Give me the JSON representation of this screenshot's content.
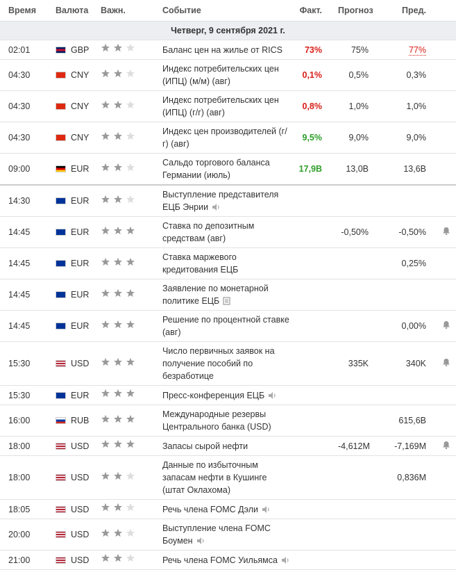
{
  "header": {
    "time": "Время",
    "currency": "Валюта",
    "importance": "Важн.",
    "event": "Событие",
    "actual": "Факт.",
    "forecast": "Прогноз",
    "previous": "Пред."
  },
  "date": "Четверг, 9 сентября 2021 г.",
  "rows": [
    {
      "time": "02:01",
      "currency": "GBP",
      "flag": [
        "#012169",
        "#c8102e",
        "#012169"
      ],
      "importance": 2,
      "event": "Баланс цен на жилье от RICS",
      "actual": "73%",
      "actual_color": "#d91e18",
      "forecast": "75%",
      "previous": "77%",
      "previous_color": "#d91e18"
    },
    {
      "time": "04:30",
      "currency": "CNY",
      "flag": [
        "#de2910"
      ],
      "importance": 2,
      "event": "Индекс потребительских цен (ИПЦ) (м/м) (авг)",
      "actual": "0,1%",
      "actual_color": "#d91e18",
      "forecast": "0,5%",
      "previous": "0,3%"
    },
    {
      "time": "04:30",
      "currency": "CNY",
      "flag": [
        "#de2910"
      ],
      "importance": 2,
      "event": "Индекс потребительских цен (ИПЦ) (г/г) (авг)",
      "actual": "0,8%",
      "actual_color": "#d91e18",
      "forecast": "1,0%",
      "previous": "1,0%"
    },
    {
      "time": "04:30",
      "currency": "CNY",
      "flag": [
        "#de2910"
      ],
      "importance": 2,
      "event": "Индекс цен производителей (г/г) (авг)",
      "actual": "9,5%",
      "actual_color": "#2e9e28",
      "forecast": "9,0%",
      "previous": "9,0%"
    },
    {
      "time": "09:00",
      "currency": "EUR",
      "flag": [
        "#000000",
        "#dd0000",
        "#ffce00"
      ],
      "importance": 2,
      "event": "Сальдо торгового баланса Германии (июль)",
      "actual": "17,9B",
      "actual_color": "#2e9e28",
      "forecast": "13,0B",
      "previous": "13,6B"
    },
    {
      "time": "14:30",
      "currency": "EUR",
      "flag": [
        "#003399"
      ],
      "importance": 2,
      "event": "Выступление представителя ЕЦБ Энрии",
      "icon": "sound"
    },
    {
      "time": "14:45",
      "currency": "EUR",
      "flag": [
        "#003399"
      ],
      "importance": 3,
      "event": "Ставка по депозитным средствам (авг)",
      "forecast": "-0,50%",
      "previous": "-0,50%",
      "alert": true
    },
    {
      "time": "14:45",
      "currency": "EUR",
      "flag": [
        "#003399"
      ],
      "importance": 3,
      "event": "Ставка маржевого кредитования ЕЦБ",
      "previous": "0,25%"
    },
    {
      "time": "14:45",
      "currency": "EUR",
      "flag": [
        "#003399"
      ],
      "importance": 3,
      "event": "Заявление по монетарной политике ЕЦБ",
      "icon": "document"
    },
    {
      "time": "14:45",
      "currency": "EUR",
      "flag": [
        "#003399"
      ],
      "importance": 3,
      "event": "Решение по процентной ставке (авг)",
      "previous": "0,00%",
      "alert": true
    },
    {
      "time": "15:30",
      "currency": "USD",
      "flag": [
        "#b22234",
        "#ffffff",
        "#b22234",
        "#ffffff",
        "#b22234"
      ],
      "importance": 3,
      "event": "Число первичных заявок на получение пособий по безработице",
      "forecast": "335K",
      "previous": "340K",
      "alert": true
    },
    {
      "time": "15:30",
      "currency": "EUR",
      "flag": [
        "#003399"
      ],
      "importance": 3,
      "event": "Пресс-конференция ЕЦБ",
      "icon": "sound"
    },
    {
      "time": "16:00",
      "currency": "RUB",
      "flag": [
        "#ffffff",
        "#0039a6",
        "#d52b1e"
      ],
      "importance": 3,
      "event": "Международные резервы Центрального банка (USD)",
      "previous": "615,6B"
    },
    {
      "time": "18:00",
      "currency": "USD",
      "flag": [
        "#b22234",
        "#ffffff",
        "#b22234",
        "#ffffff",
        "#b22234"
      ],
      "importance": 3,
      "event": "Запасы сырой нефти",
      "forecast": "-4,612M",
      "previous": "-7,169M",
      "alert": true
    },
    {
      "time": "18:00",
      "currency": "USD",
      "flag": [
        "#b22234",
        "#ffffff",
        "#b22234",
        "#ffffff",
        "#b22234"
      ],
      "importance": 2,
      "event": "Данные по избыточным запасам нефти в Кушинге (штат Оклахома)",
      "previous": "0,836M"
    },
    {
      "time": "18:05",
      "currency": "USD",
      "flag": [
        "#b22234",
        "#ffffff",
        "#b22234",
        "#ffffff",
        "#b22234"
      ],
      "importance": 2,
      "event": "Речь члена FOMC Дэли",
      "icon": "sound"
    },
    {
      "time": "20:00",
      "currency": "USD",
      "flag": [
        "#b22234",
        "#ffffff",
        "#b22234",
        "#ffffff",
        "#b22234"
      ],
      "importance": 2,
      "event": "Выступление члена FOMC Боумен",
      "icon": "sound"
    },
    {
      "time": "21:00",
      "currency": "USD",
      "flag": [
        "#b22234",
        "#ffffff",
        "#b22234",
        "#ffffff",
        "#b22234"
      ],
      "importance": 2,
      "event": "Речь члена FOMC Уильямса",
      "icon": "sound"
    }
  ]
}
